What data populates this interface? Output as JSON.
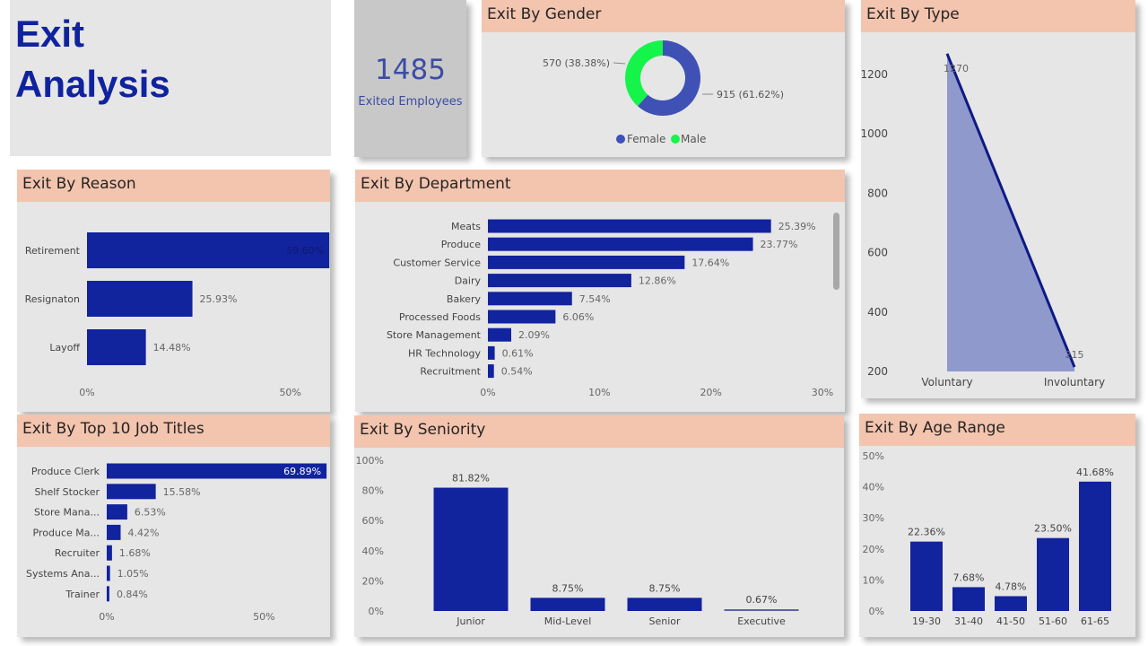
{
  "page": {
    "title_line1": "Exit",
    "title_line2": "Analysis",
    "colors": {
      "bar": "#12239e",
      "header": "#f3c4ae",
      "panel": "#e6e6e6",
      "female": "#3f51b5",
      "male": "#15f44a",
      "area_fill": "#9099cb"
    }
  },
  "kpi": {
    "value": "1485",
    "label": "Exited Employees"
  },
  "chart_data": [
    {
      "id": "gender",
      "type": "pie",
      "title": "Exit By Gender",
      "categories": [
        "Female",
        "Male"
      ],
      "values": [
        915,
        570
      ],
      "percents": [
        61.62,
        38.38
      ],
      "data_labels": [
        "915 (61.62%)",
        "570 (38.38%)"
      ],
      "legend": [
        "Female",
        "Male"
      ],
      "legend_position": "bottom"
    },
    {
      "id": "type",
      "type": "area",
      "title": "Exit By Type",
      "categories": [
        "Voluntary",
        "Involuntary"
      ],
      "values": [
        1270,
        215
      ],
      "data_labels": [
        "1270",
        "215"
      ],
      "yticks": [
        "200",
        "400",
        "600",
        "800",
        "1000",
        "1200"
      ],
      "ylim": [
        200,
        1300
      ]
    },
    {
      "id": "reason",
      "type": "bar",
      "orientation": "horizontal",
      "title": "Exit By Reason",
      "categories": [
        "Retirement",
        "Resignaton",
        "Layoff"
      ],
      "values": [
        59.6,
        25.93,
        14.48
      ],
      "data_labels": [
        "59.60%",
        "25.93%",
        "14.48%"
      ],
      "xticks": [
        "0%",
        "50%"
      ],
      "xlim": [
        0,
        60
      ]
    },
    {
      "id": "department",
      "type": "bar",
      "orientation": "horizontal",
      "title": "Exit By Department",
      "categories": [
        "Meats",
        "Produce",
        "Customer Service",
        "Dairy",
        "Bakery",
        "Processed Foods",
        "Store Management",
        "HR Technology",
        "Recruitment"
      ],
      "values": [
        25.39,
        23.77,
        17.64,
        12.86,
        7.54,
        6.06,
        2.09,
        0.61,
        0.54
      ],
      "data_labels": [
        "25.39%",
        "23.77%",
        "17.64%",
        "12.86%",
        "7.54%",
        "6.06%",
        "2.09%",
        "0.61%",
        "0.54%"
      ],
      "xticks": [
        "0%",
        "10%",
        "20%",
        "30%"
      ],
      "xlim": [
        0,
        30
      ]
    },
    {
      "id": "jobs",
      "type": "bar",
      "orientation": "horizontal",
      "title": "Exit By Top 10 Job Titles",
      "categories": [
        "Produce Clerk",
        "Shelf Stocker",
        "Store Mana...",
        "Produce Ma...",
        "Recruiter",
        "Systems Ana...",
        "Trainer"
      ],
      "values": [
        69.89,
        15.58,
        6.53,
        4.42,
        1.68,
        1.05,
        0.84
      ],
      "data_labels": [
        "69.89%",
        "15.58%",
        "6.53%",
        "4.42%",
        "1.68%",
        "1.05%",
        "0.84%"
      ],
      "xticks": [
        "0%",
        "50%"
      ],
      "xlim": [
        0,
        70
      ]
    },
    {
      "id": "seniority",
      "type": "bar",
      "orientation": "vertical",
      "title": "Exit By Seniority",
      "categories": [
        "Junior",
        "Mid-Level",
        "Senior",
        "Executive"
      ],
      "values": [
        81.82,
        8.75,
        8.75,
        0.67
      ],
      "data_labels": [
        "81.82%",
        "8.75%",
        "8.75%",
        "0.67%"
      ],
      "yticks": [
        "0%",
        "20%",
        "40%",
        "60%",
        "80%",
        "100%"
      ],
      "ylim": [
        0,
        100
      ]
    },
    {
      "id": "age",
      "type": "bar",
      "orientation": "vertical",
      "title": "Exit By Age Range",
      "categories": [
        "19-30",
        "31-40",
        "41-50",
        "51-60",
        "61-65"
      ],
      "values": [
        22.36,
        7.68,
        4.78,
        23.5,
        41.68
      ],
      "data_labels": [
        "22.36%",
        "7.68%",
        "4.78%",
        "23.50%",
        "41.68%"
      ],
      "yticks": [
        "0%",
        "10%",
        "20%",
        "30%",
        "40%",
        "50%"
      ],
      "ylim": [
        0,
        50
      ]
    }
  ]
}
